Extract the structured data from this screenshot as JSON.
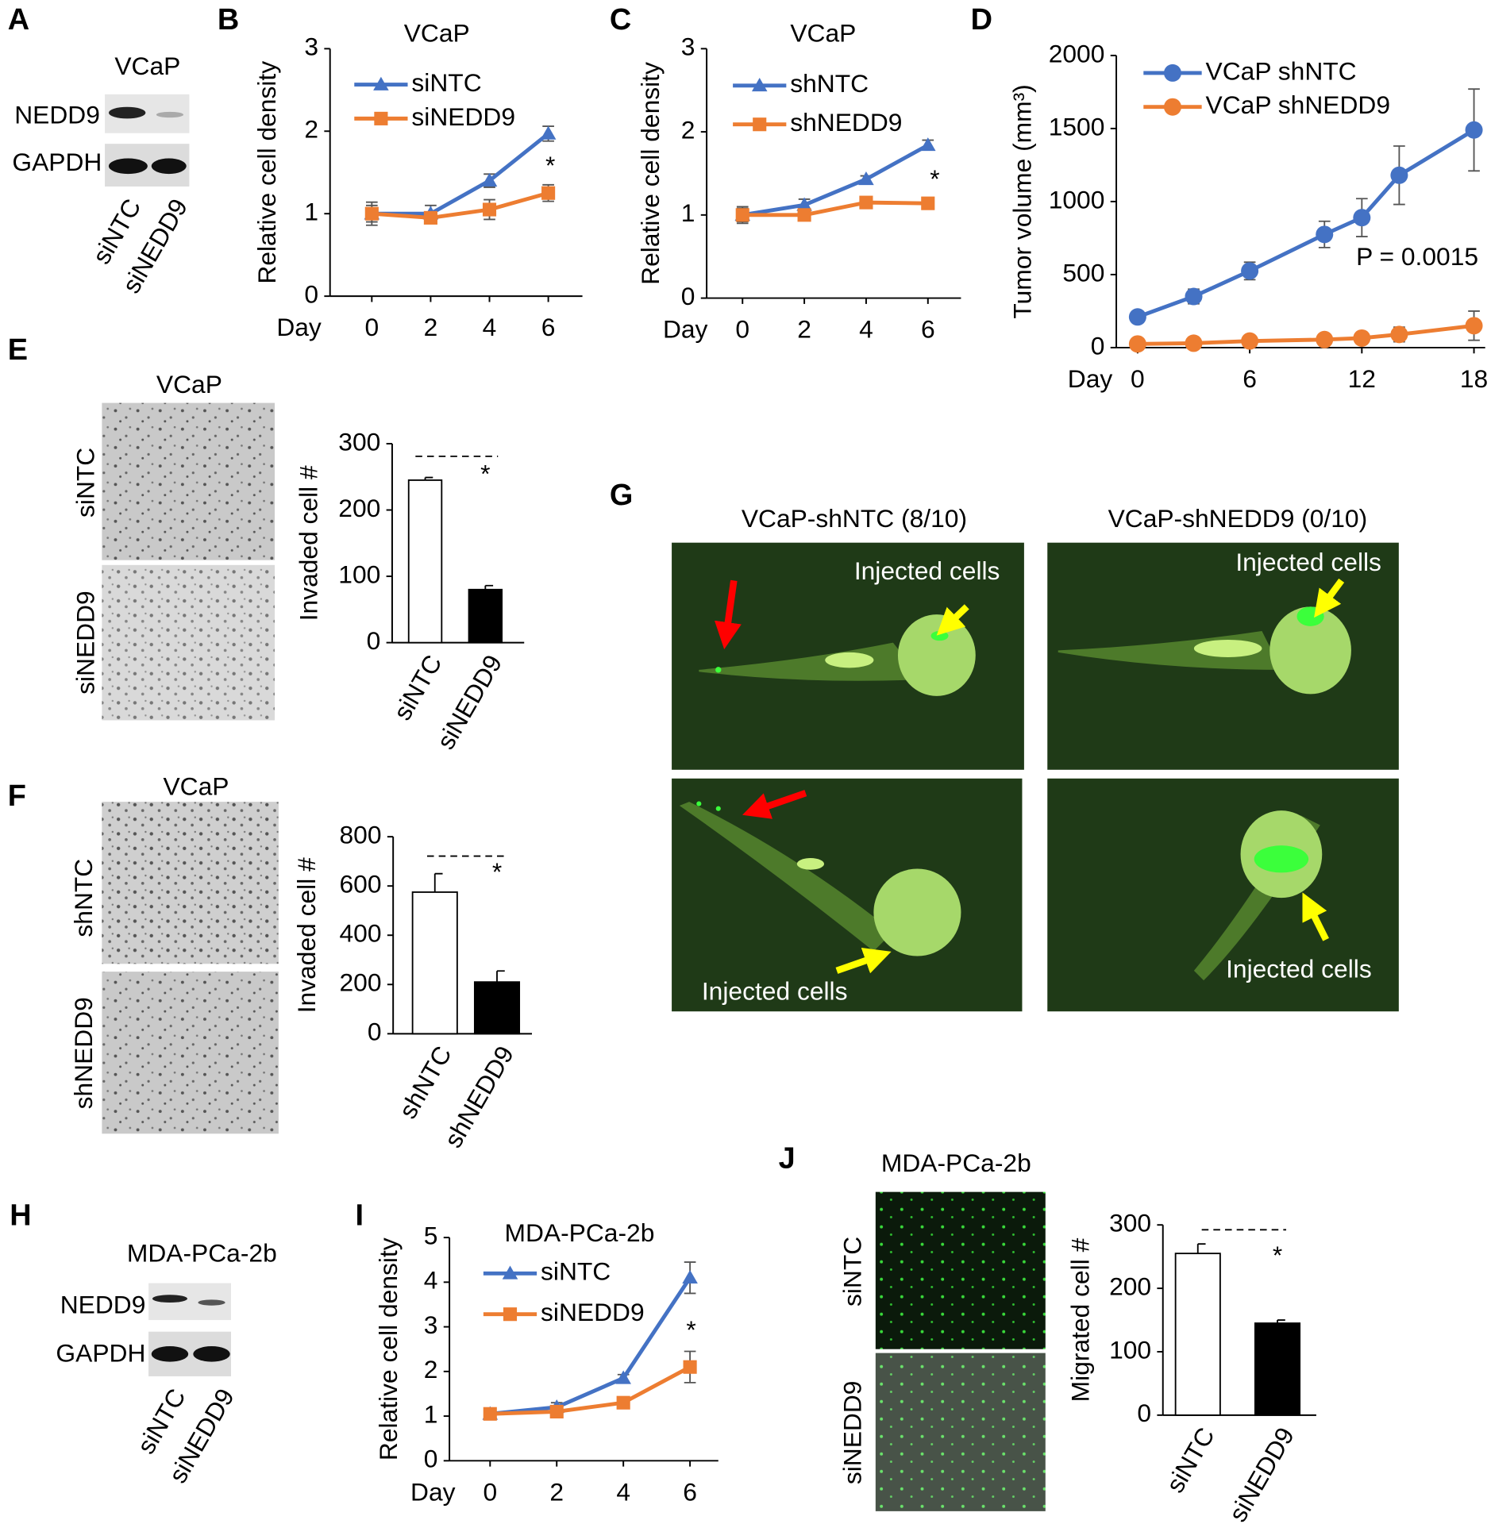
{
  "panel_letters": [
    "A",
    "B",
    "C",
    "D",
    "E",
    "F",
    "G",
    "H",
    "I",
    "J"
  ],
  "blots": [
    {
      "title": "VCaP",
      "rows": [
        "NEDD9",
        "GAPDH"
      ],
      "lanes": [
        "siNTC",
        "siNEDD9"
      ]
    },
    {
      "title": "MDA-PCa-2b",
      "rows": [
        "NEDD9",
        "GAPDH"
      ],
      "lanes": [
        "siNTC",
        "siNEDD9"
      ]
    }
  ],
  "micrographs": [
    {
      "title": "VCaP",
      "rows": [
        "siNTC",
        "siNEDD9"
      ]
    },
    {
      "title": "VCaP",
      "rows": [
        "shNTC",
        "shNEDD9"
      ]
    },
    {
      "title": "MDA-PCa-2b",
      "rows": [
        "siNTC",
        "siNEDD9"
      ]
    }
  ],
  "zebrafish": {
    "columns": [
      "VCaP-shNTC (8/10)",
      "VCaP-shNEDD9 (0/10)"
    ],
    "annotations": [
      "Injected cells",
      "Injected cells",
      "Injected cells",
      "Injected cells"
    ]
  },
  "chart_data": [
    {
      "type": "line",
      "title": "VCaP",
      "ylabel": "Relative cell density",
      "xlabel": "Day",
      "x": [
        0,
        2,
        4,
        6
      ],
      "xlim": [
        -1.42,
        7.16
      ],
      "xticks": [
        0,
        2,
        4,
        6
      ],
      "ylim": [
        0,
        3
      ],
      "yticks": [
        0,
        1,
        2,
        3
      ],
      "series": [
        {
          "name": "siNTC",
          "color": "#4472c4",
          "marker": "triangle",
          "values": [
            1.0,
            1.0,
            1.4,
            1.97
          ],
          "errors": [
            0.1,
            0.1,
            0.08,
            0.09
          ]
        },
        {
          "name": "siNEDD9",
          "color": "#ed7d31",
          "marker": "square",
          "values": [
            1.0,
            0.95,
            1.05,
            1.25
          ],
          "errors": [
            0.14,
            0.05,
            0.12,
            0.1
          ]
        }
      ],
      "annotations": [
        "*"
      ]
    },
    {
      "type": "line",
      "title": "VCaP",
      "ylabel": "Relative cell density",
      "xlabel": "Day",
      "x": [
        0,
        2,
        4,
        6
      ],
      "xlim": [
        -1.16,
        7.07
      ],
      "xticks": [
        0,
        2,
        4,
        6
      ],
      "ylim": [
        0,
        3
      ],
      "yticks": [
        0,
        1,
        2,
        3
      ],
      "series": [
        {
          "name": "shNTC",
          "color": "#4472c4",
          "marker": "triangle",
          "values": [
            1.0,
            1.12,
            1.43,
            1.84
          ],
          "errors": [
            0.08,
            0.07,
            0.04,
            0.06
          ]
        },
        {
          "name": "shNEDD9",
          "color": "#ed7d31",
          "marker": "square",
          "values": [
            1.0,
            1.0,
            1.15,
            1.14
          ],
          "errors": [
            0.1,
            0.06,
            0.04,
            0.04
          ]
        }
      ],
      "annotations": [
        "*"
      ]
    },
    {
      "type": "line",
      "ylabel": "Tumor volume (mm³)",
      "xlabel": "Day",
      "x": [
        0,
        3,
        6,
        10,
        12,
        14,
        18
      ],
      "xlim": [
        -1.14,
        18.6
      ],
      "xticks": [
        0,
        6,
        12,
        18
      ],
      "ylim": [
        0,
        2000
      ],
      "yticks": [
        0,
        500,
        1000,
        1500,
        2000
      ],
      "series": [
        {
          "name": "VCaP shNTC",
          "color": "#4472c4",
          "marker": "circle",
          "values": [
            210,
            350,
            525,
            775,
            890,
            1180,
            1490
          ],
          "errors": [
            20,
            50,
            60,
            90,
            130,
            200,
            280
          ]
        },
        {
          "name": "VCaP shNEDD9",
          "color": "#ed7d31",
          "marker": "circle",
          "values": [
            25,
            30,
            45,
            55,
            65,
            90,
            150
          ],
          "errors": [
            10,
            10,
            15,
            15,
            30,
            50,
            100
          ]
        }
      ],
      "annotations": [
        "P = 0.0015"
      ]
    },
    {
      "type": "bar",
      "ylabel": "Invaded cell #",
      "categories": [
        "siNTC",
        "siNEDD9"
      ],
      "values": [
        245,
        80
      ],
      "errors": [
        4,
        6
      ],
      "colors": [
        "#ffffff",
        "#000000"
      ],
      "ylim": [
        0,
        300
      ],
      "yticks": [
        0,
        100,
        200,
        300
      ],
      "annotations": [
        "*"
      ]
    },
    {
      "type": "bar",
      "ylabel": "Invaded cell #",
      "categories": [
        "shNTC",
        "shNEDD9"
      ],
      "values": [
        575,
        210
      ],
      "errors": [
        75,
        45
      ],
      "colors": [
        "#ffffff",
        "#000000"
      ],
      "ylim": [
        0,
        800
      ],
      "yticks": [
        0,
        200,
        400,
        600,
        800
      ],
      "annotations": [
        "*"
      ]
    },
    {
      "type": "line",
      "title": "MDA-PCa-2b",
      "ylabel": "Relative cell density",
      "xlabel": "Day",
      "x": [
        0,
        2,
        4,
        6
      ],
      "xlim": [
        -1.22,
        6.85
      ],
      "xticks": [
        0,
        2,
        4,
        6
      ],
      "ylim": [
        0,
        5
      ],
      "yticks": [
        0,
        1,
        2,
        3,
        4,
        5
      ],
      "series": [
        {
          "name": "siNTC",
          "color": "#4472c4",
          "marker": "triangle",
          "values": [
            1.05,
            1.2,
            1.85,
            4.1
          ],
          "errors": [
            0.1,
            0.1,
            0.08,
            0.35
          ]
        },
        {
          "name": "siNEDD9",
          "color": "#ed7d31",
          "marker": "square",
          "values": [
            1.05,
            1.1,
            1.3,
            2.1
          ],
          "errors": [
            0.1,
            0.1,
            0.08,
            0.35
          ]
        }
      ],
      "annotations": [
        "*"
      ]
    },
    {
      "type": "bar",
      "ylabel": "Migrated cell #",
      "categories": [
        "siNTC",
        "siNEDD9"
      ],
      "values": [
        255,
        145
      ],
      "errors": [
        15,
        5
      ],
      "colors": [
        "#ffffff",
        "#000000"
      ],
      "ylim": [
        0,
        300
      ],
      "yticks": [
        0,
        100,
        200,
        300
      ],
      "annotations": [
        "*"
      ]
    }
  ]
}
